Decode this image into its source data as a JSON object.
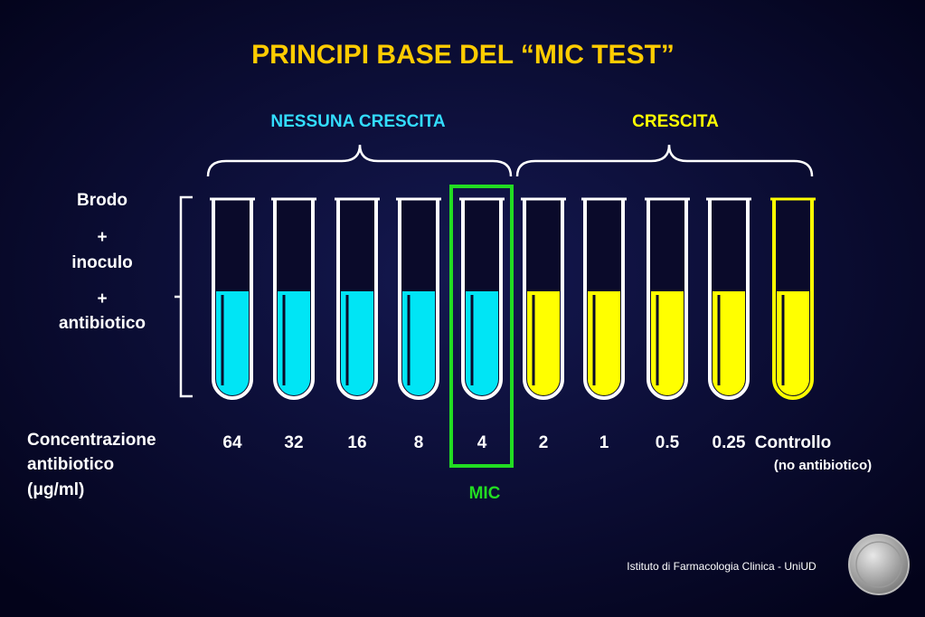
{
  "title": "PRINCIPI BASE DEL  “MIC TEST”",
  "groups": {
    "no_growth": "NESSUNA CRESCITA",
    "growth": "CRESCITA"
  },
  "medium_label": [
    "Brodo",
    "+",
    "inoculo",
    "+",
    "antibiotico"
  ],
  "concentration_label": [
    "Concentrazione",
    "antibiotico",
    "(μg/ml)"
  ],
  "tubes": [
    {
      "label": 64,
      "color": "#00e5f5"
    },
    {
      "label": 32,
      "color": "#00e5f5"
    },
    {
      "label": 16,
      "color": "#00e5f5"
    },
    {
      "label": 8,
      "color": "#00e5f5"
    },
    {
      "label": 4,
      "color": "#00e5f5"
    },
    {
      "label": 2,
      "color": "#ffff00"
    },
    {
      "label": 1,
      "color": "#ffff00"
    },
    {
      "label": 0.5,
      "color": "#ffff00"
    },
    {
      "label": 0.25,
      "color": "#ffff00"
    },
    {
      "label": "Controllo",
      "note": "(no antibiotico)",
      "color": "#ffff00"
    }
  ],
  "mic_label": "MIC",
  "footer": "Istituto di Farmacologia Clinica - UniUD"
}
